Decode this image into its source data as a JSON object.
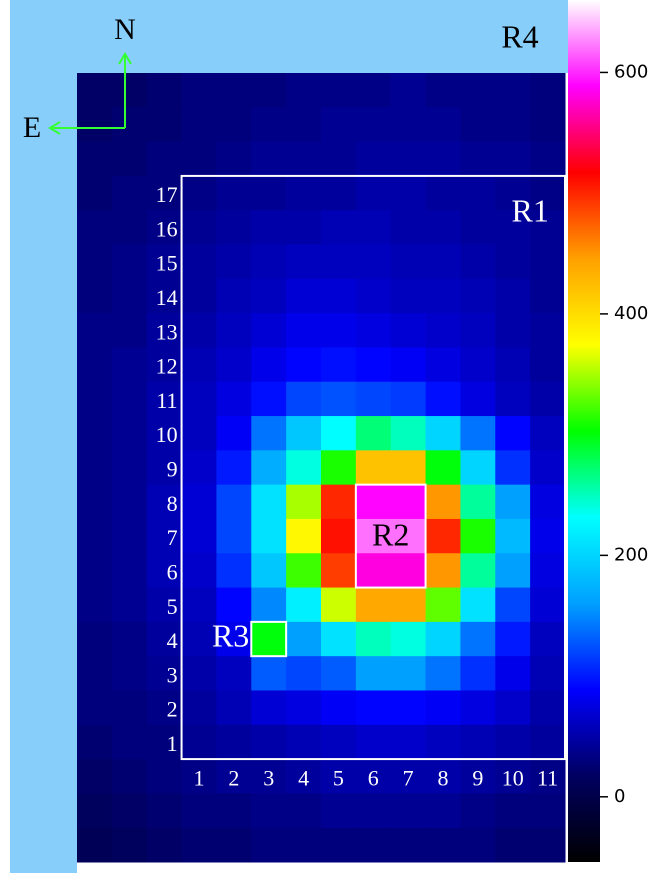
{
  "chart_data": {
    "type": "heatmap",
    "xlim": [
      -2.5,
      11.5
    ],
    "ylim": [
      -2.5,
      20.5
    ],
    "xticks": [
      1,
      2,
      3,
      4,
      5,
      6,
      7,
      8,
      9,
      10,
      11
    ],
    "yticks": [
      1,
      2,
      3,
      4,
      5,
      6,
      7,
      8,
      9,
      10,
      11,
      12,
      13,
      14,
      15,
      16,
      17
    ],
    "zlim": [
      -54,
      660
    ],
    "zticks": [
      0,
      200,
      400,
      600
    ],
    "colormap": [
      "#000000",
      "#000060",
      "#0000ff",
      "#00a0ff",
      "#00ffff",
      "#00ff00",
      "#ffff00",
      "#ffa000",
      "#ff0000",
      "#ff00ff",
      "#ffffff"
    ],
    "compass": {
      "north": "N",
      "east": "E"
    },
    "regions": [
      "R1",
      "R2",
      "R3",
      "R4"
    ],
    "z": [
      [
        20,
        20,
        25,
        30,
        30,
        30,
        35,
        35,
        35,
        40,
        35,
        35,
        35,
        30
      ],
      [
        20,
        25,
        25,
        30,
        30,
        35,
        35,
        40,
        40,
        40,
        40,
        35,
        35,
        30
      ],
      [
        25,
        25,
        30,
        30,
        35,
        40,
        40,
        40,
        45,
        45,
        45,
        40,
        40,
        35
      ],
      [
        25,
        30,
        30,
        35,
        40,
        40,
        45,
        45,
        50,
        50,
        45,
        45,
        40,
        35
      ],
      [
        30,
        30,
        35,
        40,
        45,
        50,
        50,
        55,
        55,
        50,
        50,
        45,
        45,
        40
      ],
      [
        30,
        35,
        40,
        45,
        50,
        55,
        60,
        60,
        60,
        55,
        55,
        50,
        45,
        40
      ],
      [
        30,
        35,
        40,
        45,
        55,
        60,
        70,
        70,
        65,
        60,
        60,
        55,
        50,
        40
      ],
      [
        35,
        35,
        45,
        50,
        60,
        70,
        80,
        80,
        75,
        70,
        65,
        60,
        50,
        45
      ],
      [
        35,
        40,
        45,
        55,
        65,
        80,
        90,
        95,
        90,
        85,
        75,
        65,
        55,
        45
      ],
      [
        35,
        40,
        50,
        60,
        75,
        95,
        120,
        125,
        120,
        115,
        95,
        75,
        60,
        50
      ],
      [
        35,
        40,
        50,
        60,
        85,
        140,
        190,
        230,
        270,
        250,
        200,
        140,
        90,
        60
      ],
      [
        35,
        40,
        50,
        65,
        100,
        170,
        240,
        310,
        420,
        420,
        300,
        200,
        110,
        65
      ],
      [
        35,
        40,
        55,
        70,
        120,
        210,
        350,
        500,
        590,
        590,
        450,
        260,
        160,
        75
      ],
      [
        35,
        40,
        55,
        70,
        120,
        210,
        380,
        510,
        620,
        620,
        500,
        310,
        180,
        80
      ],
      [
        35,
        40,
        55,
        65,
        110,
        190,
        320,
        490,
        580,
        580,
        450,
        260,
        160,
        75
      ],
      [
        35,
        40,
        50,
        60,
        90,
        150,
        220,
        360,
        440,
        440,
        330,
        210,
        120,
        70
      ],
      [
        30,
        35,
        45,
        55,
        80,
        300,
        160,
        210,
        250,
        240,
        200,
        140,
        100,
        60
      ],
      [
        30,
        35,
        40,
        50,
        60,
        130,
        120,
        130,
        160,
        160,
        140,
        110,
        80,
        55
      ],
      [
        30,
        30,
        35,
        45,
        55,
        70,
        75,
        85,
        90,
        90,
        85,
        75,
        65,
        50
      ],
      [
        25,
        30,
        30,
        40,
        45,
        50,
        55,
        60,
        65,
        65,
        60,
        55,
        50,
        45
      ],
      [
        20,
        25,
        30,
        35,
        40,
        40,
        45,
        50,
        50,
        50,
        50,
        45,
        40,
        35
      ],
      [
        15,
        20,
        25,
        30,
        30,
        35,
        35,
        40,
        40,
        40,
        40,
        35,
        30,
        30
      ],
      [
        10,
        15,
        20,
        25,
        25,
        30,
        30,
        30,
        30,
        30,
        30,
        30,
        25,
        25
      ]
    ]
  }
}
